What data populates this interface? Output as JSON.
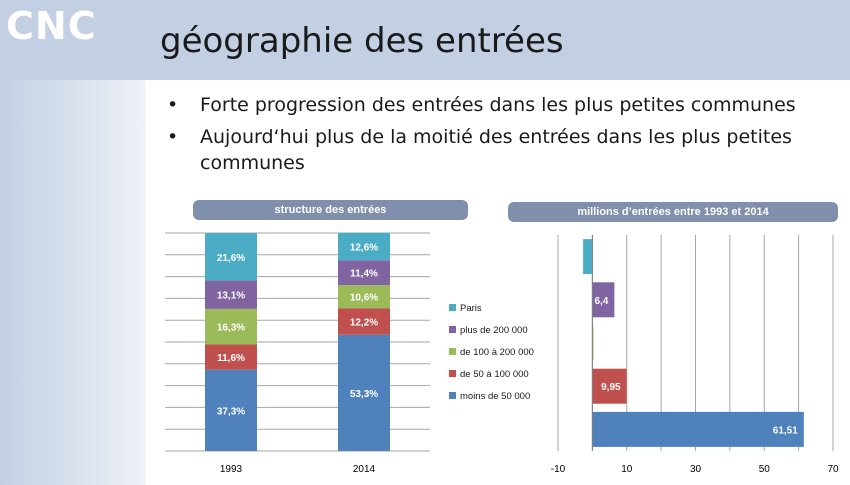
{
  "header": {
    "logo": "CNC",
    "title": "géographie des entrées"
  },
  "bullets": [
    "Forte progression des entrées dans les plus petites communes",
    "Aujourd‘hui plus de la moitié des entrées dans les plus petites communes"
  ],
  "legend": [
    {
      "label": "Paris",
      "color": "#4bacc6"
    },
    {
      "label": "plus de 200 000",
      "color": "#8064a2"
    },
    {
      "label": "de 100 à 200 000",
      "color": "#9bbb59"
    },
    {
      "label": "de 50 à 100 000",
      "color": "#c0504d"
    },
    {
      "label": "moins de 50 000",
      "color": "#4f81bd"
    }
  ],
  "chart_data": [
    {
      "type": "bar",
      "stacked": true,
      "title": "structure des entrées",
      "categories": [
        "1993",
        "2014"
      ],
      "series": [
        {
          "name": "moins de 50 000",
          "color": "#4f81bd",
          "values": [
            37.3,
            53.3
          ],
          "labels": [
            "37,3%",
            "53,3%"
          ]
        },
        {
          "name": "de 50 à 100 000",
          "color": "#c0504d",
          "values": [
            11.6,
            12.2
          ],
          "labels": [
            "11,6%",
            "12,2%"
          ]
        },
        {
          "name": "de 100 à 200 000",
          "color": "#9bbb59",
          "values": [
            16.3,
            10.6
          ],
          "labels": [
            "16,3%",
            "10,6%"
          ]
        },
        {
          "name": "plus de 200 000",
          "color": "#8064a2",
          "values": [
            13.1,
            11.4
          ],
          "labels": [
            "13,1%",
            "11,4%"
          ]
        },
        {
          "name": "Paris",
          "color": "#4bacc6",
          "values": [
            21.6,
            12.6
          ],
          "labels": [
            "21,6%",
            "12,6%"
          ]
        }
      ],
      "ylim": [
        0,
        100
      ],
      "grid": true
    },
    {
      "type": "bar",
      "orientation": "horizontal",
      "title": "millions d’entrées entre 1993 et  2014",
      "categories": [
        "Paris",
        "plus de 200 000",
        "de 100 à 200 000",
        "de 50 à 100 000",
        "moins de 50 000"
      ],
      "colors": [
        "#4bacc6",
        "#8064a2",
        "#9bbb59",
        "#c0504d",
        "#4f81bd"
      ],
      "values": [
        -2.7,
        6.4,
        0.3,
        9.95,
        61.51
      ],
      "labels": [
        "",
        "6,4",
        "",
        "9,95",
        "61,51"
      ],
      "xlim": [
        -10,
        70
      ],
      "xticks": [
        "-10",
        "10",
        "30",
        "50",
        "70"
      ],
      "grid": true
    }
  ]
}
